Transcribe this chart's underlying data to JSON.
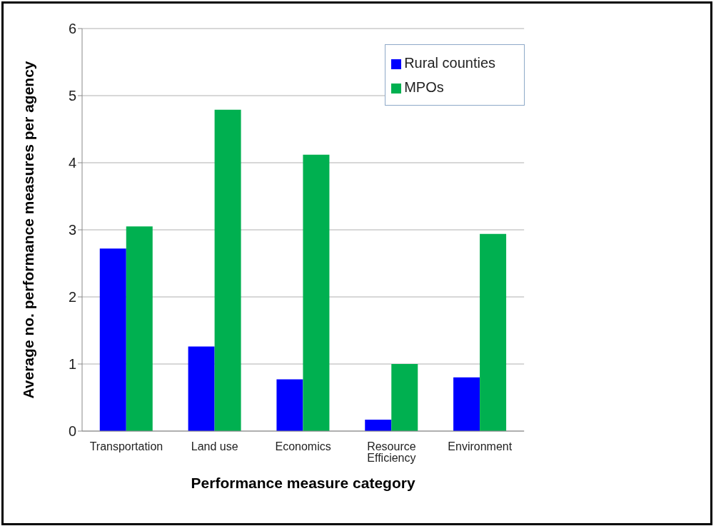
{
  "chart_data": {
    "type": "bar",
    "xlabel": "Performance measure category",
    "ylabel": "Average no. performance measures per agency",
    "categories": [
      "Transportation",
      "Land use",
      "Economics",
      "Resource Efficiency",
      "Environment"
    ],
    "series": [
      {
        "name": "Rural counties",
        "color": "#0000ff",
        "values": [
          2.72,
          1.26,
          0.77,
          0.17,
          0.8
        ]
      },
      {
        "name": "MPOs",
        "color": "#00b050",
        "values": [
          3.05,
          4.79,
          4.12,
          1.0,
          2.94
        ]
      }
    ],
    "ylim": [
      0,
      6
    ],
    "yticks": [
      0,
      1,
      2,
      3,
      4,
      5,
      6
    ],
    "grid": "y",
    "legend": "top right"
  }
}
